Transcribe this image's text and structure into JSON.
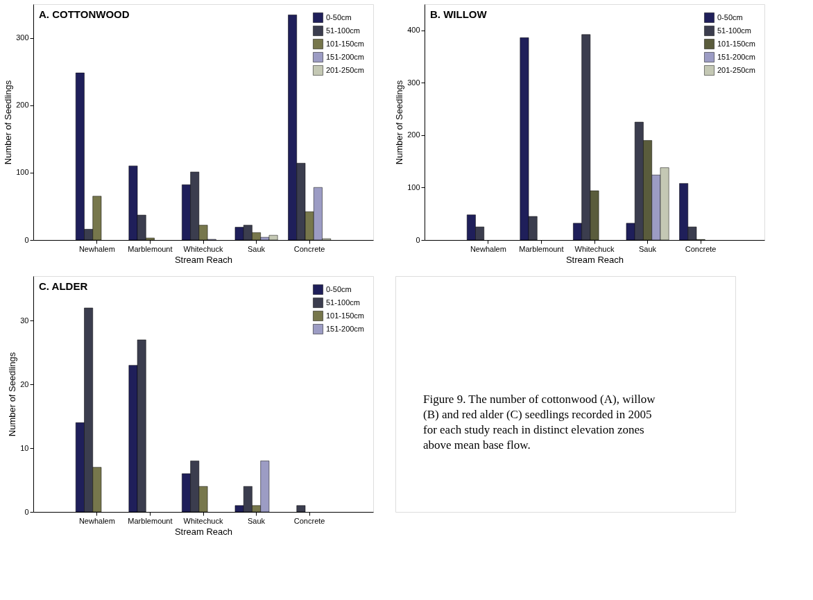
{
  "chart_data": [
    {
      "type": "bar",
      "title": "A.  COTTONWOOD",
      "xlabel": "Stream Reach",
      "ylabel": "Number of Seedlings",
      "categories": [
        "Newhalem",
        "Marblemount",
        "Whitechuck",
        "Sauk",
        "Concrete"
      ],
      "ylim": [
        0,
        350
      ],
      "yticks": [
        0,
        100,
        200,
        300
      ],
      "grid": false,
      "legend": "top right",
      "series": [
        {
          "name": "0-50cm",
          "color": "#1f1f5a",
          "values": [
            248,
            110,
            82,
            19,
            334
          ]
        },
        {
          "name": "51-100cm",
          "color": "#3b3d4e",
          "values": [
            16,
            37,
            101,
            22,
            114
          ]
        },
        {
          "name": "101-150cm",
          "color": "#77774c",
          "values": [
            65,
            3,
            22,
            11,
            42
          ]
        },
        {
          "name": "151-200cm",
          "color": "#9c9cc4",
          "values": [
            0,
            0,
            1,
            4,
            78
          ]
        },
        {
          "name": "201-250cm",
          "color": "#c4c8b4",
          "values": [
            0,
            0,
            0,
            7,
            2
          ]
        }
      ]
    },
    {
      "type": "bar",
      "title": "B.  WILLOW",
      "xlabel": "Stream Reach",
      "ylabel": "Number of Seedlings",
      "categories": [
        "Newhalem",
        "Marblemount",
        "Whitechuck",
        "Sauk",
        "Concrete"
      ],
      "ylim": [
        0,
        450
      ],
      "yticks": [
        0,
        100,
        200,
        300,
        400
      ],
      "grid": false,
      "legend": "top right",
      "series": [
        {
          "name": "0-50cm",
          "color": "#1f1f5a",
          "values": [
            48,
            386,
            32,
            32,
            108
          ]
        },
        {
          "name": "51-100cm",
          "color": "#3b3d4e",
          "values": [
            25,
            45,
            392,
            225,
            25
          ]
        },
        {
          "name": "101-150cm",
          "color": "#5a5c3c",
          "values": [
            0,
            0,
            94,
            190,
            1
          ]
        },
        {
          "name": "151-200cm",
          "color": "#9c9cc4",
          "values": [
            0,
            0,
            0,
            124,
            0
          ]
        },
        {
          "name": "201-250cm",
          "color": "#c4c8b4",
          "values": [
            0,
            0,
            0,
            138,
            0
          ]
        }
      ]
    },
    {
      "type": "bar",
      "title": "C.  ALDER",
      "xlabel": "Stream Reach",
      "ylabel": "Number of Seedlings",
      "categories": [
        "Newhalem",
        "Marblemount",
        "Whitechuck",
        "Sauk",
        "Concrete"
      ],
      "ylim": [
        0,
        37
      ],
      "yticks": [
        0,
        10,
        20,
        30
      ],
      "grid": false,
      "legend": "top right",
      "series": [
        {
          "name": "0-50cm",
          "color": "#1f1f5a",
          "values": [
            14,
            23,
            6,
            1,
            0
          ]
        },
        {
          "name": "51-100cm",
          "color": "#3b3d4e",
          "values": [
            32,
            27,
            8,
            4,
            1
          ]
        },
        {
          "name": "101-150cm",
          "color": "#77774c",
          "values": [
            7,
            0,
            4,
            1,
            0
          ]
        },
        {
          "name": "151-200cm",
          "color": "#9c9cc4",
          "values": [
            0,
            0,
            0,
            8,
            0
          ]
        }
      ]
    },
    {
      "type": "other",
      "annotations": [
        "Figure 9.  The number of cottonwood (A), willow (B) and red alder (C) seedlings recorded in 2005 for each study reach in distinct elevation zones above mean base flow."
      ]
    }
  ]
}
